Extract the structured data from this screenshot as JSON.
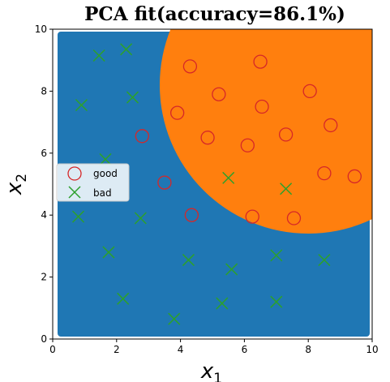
{
  "chart_data": {
    "type": "scatter",
    "title": "PCA fit(accuracy=86.1%)",
    "xlabel": "x",
    "xlabel_sub": "1",
    "ylabel": "x",
    "ylabel_sub": "2",
    "xlim": [
      0,
      10
    ],
    "ylim": [
      0,
      10
    ],
    "xticks": [
      "0",
      "2",
      "4",
      "6",
      "8",
      "10"
    ],
    "yticks": [
      "0",
      "2",
      "4",
      "6",
      "8",
      "10"
    ],
    "grid": false,
    "legend_placement": "center-left",
    "background_region": {
      "label": "bad",
      "color": "#1f77b4"
    },
    "decision_region": {
      "label": "good",
      "shape": "circle",
      "center": [
        8.0,
        8.2
      ],
      "radius": 4.65,
      "color": "#ff7f0e"
    },
    "series": [
      {
        "name": "good",
        "marker": "circle",
        "color": "#d62728",
        "points": [
          [
            4.3,
            8.8
          ],
          [
            6.5,
            8.95
          ],
          [
            3.9,
            7.3
          ],
          [
            5.2,
            7.9
          ],
          [
            6.55,
            7.5
          ],
          [
            8.05,
            8.0
          ],
          [
            2.8,
            6.55
          ],
          [
            4.85,
            6.5
          ],
          [
            6.1,
            6.25
          ],
          [
            7.3,
            6.6
          ],
          [
            8.7,
            6.9
          ],
          [
            3.5,
            5.05
          ],
          [
            8.5,
            5.35
          ],
          [
            9.45,
            5.25
          ],
          [
            4.35,
            4.0
          ],
          [
            6.25,
            3.95
          ],
          [
            7.55,
            3.9
          ]
        ]
      },
      {
        "name": "bad",
        "marker": "x",
        "color": "#2ca02c",
        "points": [
          [
            1.45,
            9.15
          ],
          [
            2.3,
            9.35
          ],
          [
            0.9,
            7.55
          ],
          [
            2.5,
            7.8
          ],
          [
            1.65,
            5.8
          ],
          [
            5.5,
            5.2
          ],
          [
            7.3,
            4.85
          ],
          [
            0.8,
            3.95
          ],
          [
            2.75,
            3.9
          ],
          [
            1.75,
            2.8
          ],
          [
            4.25,
            2.55
          ],
          [
            5.6,
            2.25
          ],
          [
            7.0,
            2.7
          ],
          [
            8.5,
            2.55
          ],
          [
            2.2,
            1.3
          ],
          [
            3.8,
            0.65
          ],
          [
            5.3,
            1.15
          ],
          [
            7.0,
            1.2
          ]
        ]
      }
    ]
  }
}
